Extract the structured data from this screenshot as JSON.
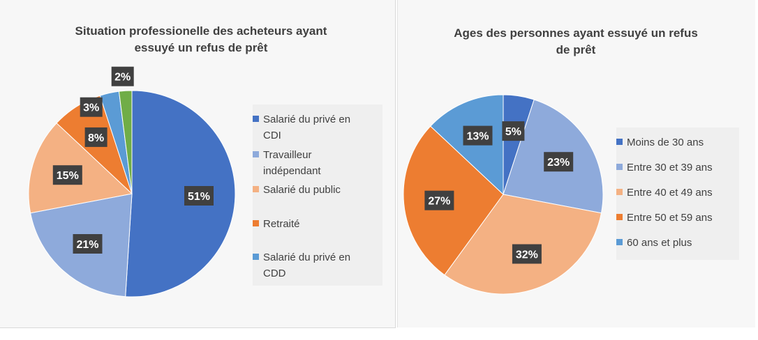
{
  "chart_data": [
    {
      "type": "pie",
      "title": "Situation professionelle des acheteurs ayant\nessuyé un refus de prêt",
      "legend_position": "right",
      "slices": [
        {
          "label": "Salarié du privé en\nCDI",
          "value": 51,
          "display": "51%",
          "color": "#4472c4"
        },
        {
          "label": "Travailleur\nindépendant",
          "value": 21,
          "display": "21%",
          "color": "#8eaadb"
        },
        {
          "label": "Salarié du public",
          "value": 15,
          "display": "15%",
          "color": "#f4b183"
        },
        {
          "label": "Retraité",
          "value": 8,
          "display": "8%",
          "color": "#ed7d31"
        },
        {
          "label": "Salarié du privé en\nCDD",
          "value": 3,
          "display": "3%",
          "color": "#5b9bd5"
        },
        {
          "label": "",
          "value": 2,
          "display": "2%",
          "color": "#70ad47"
        }
      ]
    },
    {
      "type": "pie",
      "title": "Ages des personnes ayant essuyé un refus\nde prêt",
      "legend_position": "right",
      "slices": [
        {
          "label": "Moins de 30 ans",
          "value": 5,
          "display": "5%",
          "color": "#4472c4"
        },
        {
          "label": "Entre 30 et 39 ans",
          "value": 23,
          "display": "23%",
          "color": "#8eaadb"
        },
        {
          "label": "Entre 40 et 49 ans",
          "value": 32,
          "display": "32%",
          "color": "#f4b183"
        },
        {
          "label": "Entre 50 et 59 ans",
          "value": 27,
          "display": "27%",
          "color": "#ed7d31"
        },
        {
          "label": "60 ans et plus",
          "value": 13,
          "display": "13%",
          "color": "#5b9bd5"
        }
      ]
    }
  ]
}
